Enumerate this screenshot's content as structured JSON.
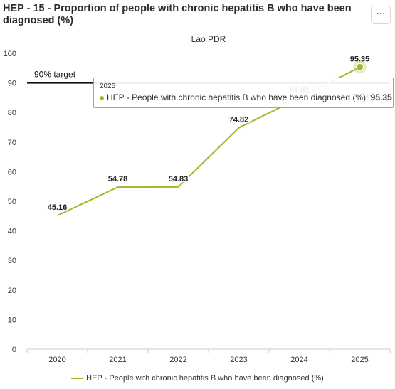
{
  "header": {
    "title": "HEP - 15 - Proportion of people with chronic hepatitis B who have been diagnosed (%)",
    "menu_label": "⋯"
  },
  "chart_data": {
    "type": "line",
    "title": "Lao PDR",
    "x": [
      "2020",
      "2021",
      "2022",
      "2023",
      "2024",
      "2025"
    ],
    "series": [
      {
        "name": "HEP - People with chronic hepatitis B who have been diagnosed (%)",
        "values": [
          45.16,
          54.78,
          54.83,
          74.82,
          84.89,
          95.35
        ],
        "labels": [
          "45.16",
          "54.78",
          "54.83",
          "74.82",
          "84.89",
          "95.35"
        ],
        "color": "#9bbb2a"
      }
    ],
    "ylim": [
      0,
      100
    ],
    "yticks": [
      0,
      10,
      20,
      30,
      40,
      50,
      60,
      70,
      80,
      90,
      100
    ],
    "xlabel": "",
    "ylabel": "",
    "grid": false,
    "legend_position": "bottom",
    "target": {
      "value": 90,
      "label": "90% target",
      "color": "#111111"
    }
  },
  "tooltip": {
    "title": "2025",
    "series_name": "HEP - People with chronic hepatitis B who have been diagnosed (%)",
    "value": "95.35"
  },
  "legend": {
    "label": "HEP - People with chronic hepatitis B who have been diagnosed (%)"
  }
}
